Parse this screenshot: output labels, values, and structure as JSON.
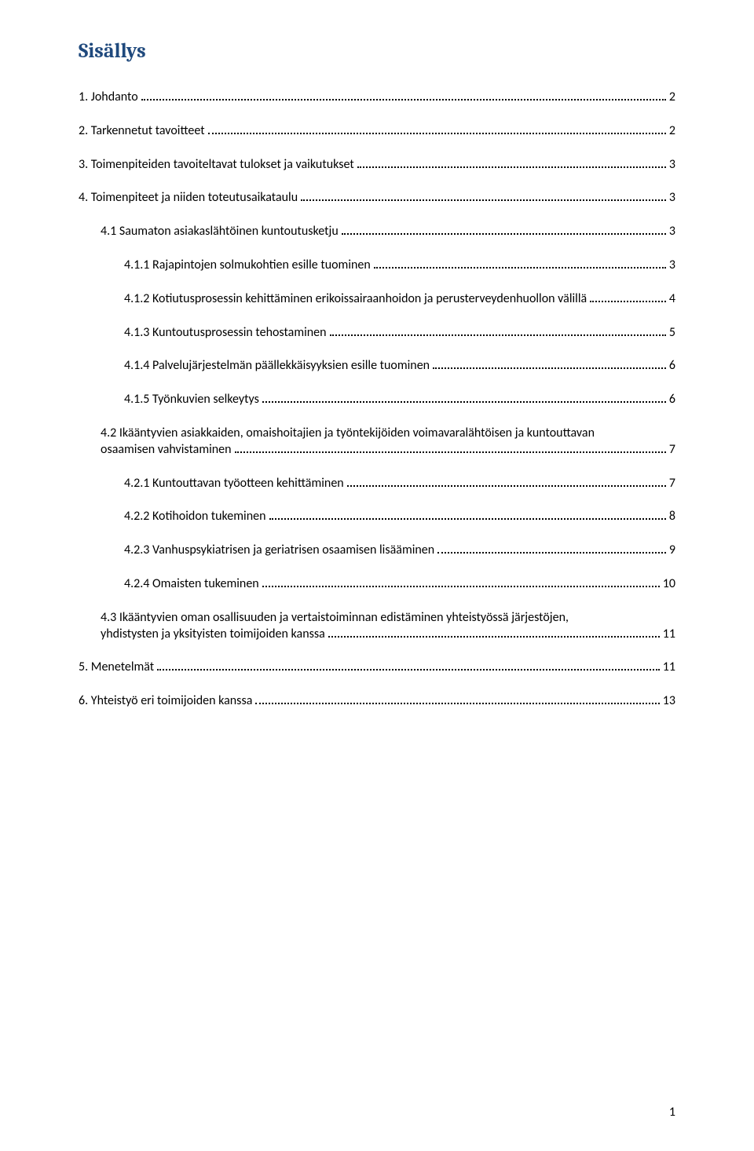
{
  "title": "Sisällys",
  "title_color": "#1f497d",
  "text_color": "#000000",
  "dot_color": "#000000",
  "background": "#ffffff",
  "page_number": "1",
  "entries": [
    {
      "level": 1,
      "text": "1. Johdanto",
      "page": "2"
    },
    {
      "level": 1,
      "text": "2. Tarkennetut tavoitteet",
      "page": "2"
    },
    {
      "level": 1,
      "text": "3. Toimenpiteiden tavoiteltavat tulokset ja vaikutukset",
      "page": "3"
    },
    {
      "level": 1,
      "text": "4. Toimenpiteet ja niiden toteutusaikataulu",
      "page": "3"
    },
    {
      "level": 2,
      "text": "4.1 Saumaton asiakaslähtöinen kuntoutusketju",
      "page": "3"
    },
    {
      "level": 3,
      "text": "4.1.1 Rajapintojen solmukohtien esille tuominen",
      "page": "3"
    },
    {
      "level": 3,
      "text": "4.1.2 Kotiutusprosessin kehittäminen erikoissairaanhoidon ja perusterveydenhuollon välillä",
      "page": "4"
    },
    {
      "level": 3,
      "text": "4.1.3 Kuntoutusprosessin tehostaminen",
      "page": "5"
    },
    {
      "level": 3,
      "text": "4.1.4 Palvelujärjestelmän päällekkäisyyksien esille tuominen",
      "page": "6"
    },
    {
      "level": 3,
      "text": "4.1.5 Työnkuvien selkeytys",
      "page": "6"
    },
    {
      "level": 2,
      "multiline": true,
      "text1": "4.2 Ikääntyvien asiakkaiden, omaishoitajien ja työntekijöiden voimavaralähtöisen ja kuntouttavan",
      "text2": "osaamisen vahvistaminen",
      "page": "7"
    },
    {
      "level": 3,
      "text": "4.2.1 Kuntouttavan työotteen kehittäminen",
      "page": "7"
    },
    {
      "level": 3,
      "text": "4.2.2 Kotihoidon tukeminen",
      "page": "8"
    },
    {
      "level": 3,
      "text": "4.2.3 Vanhuspsykiatrisen ja geriatrisen osaamisen lisääminen",
      "page": "9"
    },
    {
      "level": 3,
      "text": "4.2.4 Omaisten tukeminen",
      "page": "10"
    },
    {
      "level": 2,
      "multiline": true,
      "text1": "4.3 Ikääntyvien oman osallisuuden ja vertaistoiminnan edistäminen yhteistyössä järjestöjen,",
      "text2": "yhdistysten ja yksityisten toimijoiden kanssa",
      "page": "11"
    },
    {
      "level": 1,
      "text": "5. Menetelmät",
      "page": "11"
    },
    {
      "level": 1,
      "text": "6. Yhteistyö eri toimijoiden kanssa",
      "page": "13"
    }
  ]
}
